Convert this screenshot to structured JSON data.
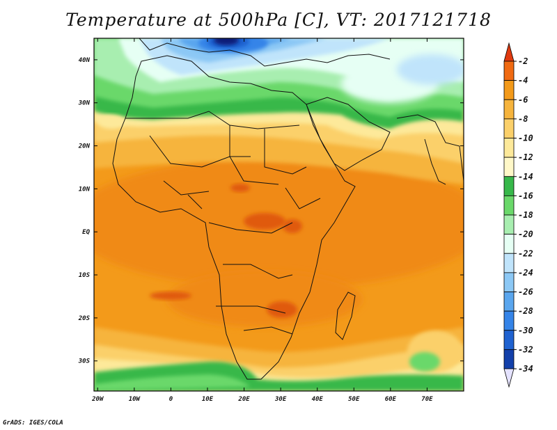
{
  "title": "Temperature at 500hPa [C], VT: 2017121718",
  "credit": "GrADS: IGES/COLA",
  "map": {
    "lon_labels": [
      "20W",
      "10W",
      "0",
      "10E",
      "20E",
      "30E",
      "40E",
      "50E",
      "60E",
      "70E"
    ],
    "lat_labels": [
      "40N",
      "30N",
      "20N",
      "10N",
      "EQ",
      "10S",
      "20S",
      "30S"
    ],
    "lon_values": [
      -20,
      -10,
      0,
      10,
      20,
      30,
      40,
      50,
      60,
      70
    ],
    "lat_values": [
      40,
      30,
      20,
      10,
      0,
      -10,
      -20,
      -30
    ],
    "lon_range": [
      -21,
      80
    ],
    "lat_range": [
      -37,
      45
    ]
  },
  "colorbar": {
    "labels": [
      "-2",
      "-4",
      "-6",
      "-8",
      "-10",
      "-12",
      "-14",
      "-16",
      "-18",
      "-20",
      "-22",
      "-24",
      "-26",
      "-28",
      "-30",
      "-32",
      "-34"
    ],
    "colors": [
      "#e03a10",
      "#f06a12",
      "#f39a1a",
      "#f6b43d",
      "#fbd06a",
      "#fde99a",
      "#fff8c8",
      "#37b84a",
      "#6ad86a",
      "#a8eeb0",
      "#e6fff4",
      "#c0e4fb",
      "#8cc8f5",
      "#5aa6ee",
      "#3584e8",
      "#1f62d0",
      "#1340aa",
      "#0b1f78"
    ]
  }
}
